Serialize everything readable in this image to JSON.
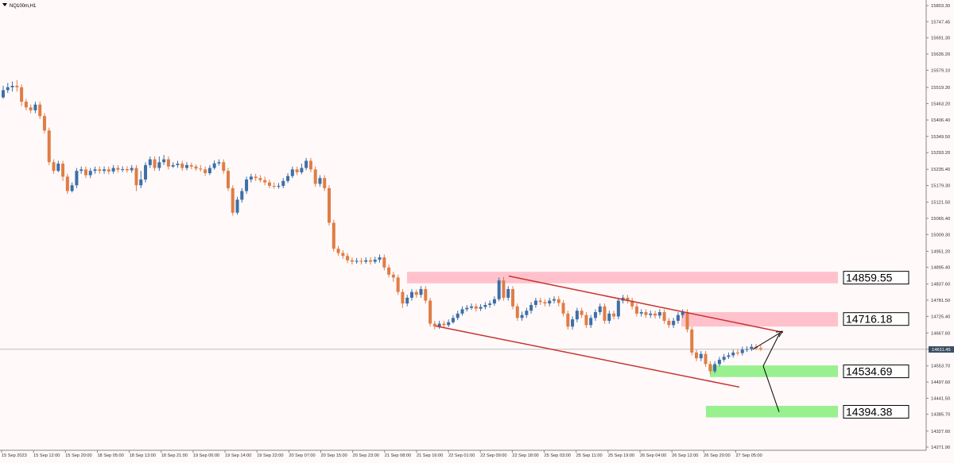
{
  "symbol": "NQ100m,H1",
  "current_price_label": "14611.45",
  "colors": {
    "background": "#fff9f9",
    "bull": "#3d6fa8",
    "bear": "#e07d45",
    "channel": "#c83232",
    "resistance_zone": "#ffc2cc",
    "support_zone": "#98f08e",
    "current_price_line": "#c0c0c0",
    "projection": "#000000"
  },
  "chart_data": {
    "type": "candlestick",
    "title": "NQ100m,H1",
    "ylim": [
      14271.9,
      15803.3
    ],
    "y_ticks": [
      "15803.30",
      "15747.45",
      "15691.30",
      "15635.20",
      "15579.10",
      "15519.30",
      "15463.20",
      "15406.40",
      "15349.50",
      "15293.20",
      "15235.40",
      "15179.30",
      "15121.50",
      "15065.40",
      "15009.30",
      "14951.20",
      "14895.40",
      "14837.60",
      "14781.50",
      "14725.40",
      "14667.60",
      "14611.45",
      "14553.70",
      "14497.60",
      "14441.50",
      "14385.70",
      "14327.60",
      "14271.90"
    ],
    "x_labels": [
      "15 Sep 2023",
      "15 Sep 12:00",
      "15 Sep 20:00",
      "18 Sep 05:00",
      "18 Sep 13:00",
      "18 Sep 21:00",
      "19 Sep 06:00",
      "19 Sep 14:00",
      "19 Sep 22:00",
      "20 Sep 07:00",
      "20 Sep 15:00",
      "20 Sep 23:00",
      "21 Sep 08:00",
      "21 Sep 16:00",
      "22 Sep 01:00",
      "22 Sep 09:00",
      "22 Sep 18:00",
      "25 Sep 03:00",
      "25 Sep 11:00",
      "25 Sep 19:00",
      "26 Sep 04:00",
      "26 Sep 12:00",
      "26 Sep 20:00",
      "27 Sep 05:00"
    ],
    "levels": [
      {
        "label": "14859.55",
        "type": "resistance",
        "value": 14859.55,
        "zone": [
          14840,
          14880
        ]
      },
      {
        "label": "14716.18",
        "type": "resistance",
        "value": 14716.18,
        "zone": [
          14690,
          14740
        ]
      },
      {
        "label": "14534.69",
        "type": "support",
        "value": 14534.69,
        "zone": [
          14515,
          14555
        ]
      },
      {
        "label": "14394.38",
        "type": "support",
        "value": 14394.38,
        "zone": [
          14375,
          14415
        ]
      }
    ],
    "channel": {
      "upper": [
        [
          "22 Sep 09:00",
          14865
        ],
        [
          "27 Sep 13:00",
          14670
        ]
      ],
      "lower": [
        [
          "21 Sep 16:00",
          14692
        ],
        [
          "27 Sep 10:00",
          14480
        ]
      ]
    },
    "projection": [
      14611,
      14668,
      14553,
      14394
    ],
    "candles": [
      [
        15485,
        15510,
        15525,
        15480
      ],
      [
        15510,
        15520,
        15535,
        15500
      ],
      [
        15520,
        15525,
        15540,
        15505
      ],
      [
        15525,
        15520,
        15545,
        15505
      ],
      [
        15520,
        15470,
        15530,
        15455
      ],
      [
        15470,
        15450,
        15480,
        15440
      ],
      [
        15450,
        15440,
        15460,
        15430
      ],
      [
        15440,
        15460,
        15470,
        15430
      ],
      [
        15460,
        15420,
        15470,
        15410
      ],
      [
        15420,
        15370,
        15430,
        15360
      ],
      [
        15370,
        15260,
        15380,
        15250
      ],
      [
        15260,
        15230,
        15270,
        15220
      ],
      [
        15230,
        15255,
        15265,
        15225
      ],
      [
        15255,
        15210,
        15265,
        15195
      ],
      [
        15210,
        15160,
        15220,
        15150
      ],
      [
        15160,
        15180,
        15190,
        15155
      ],
      [
        15180,
        15230,
        15240,
        15170
      ],
      [
        15230,
        15235,
        15245,
        15220
      ],
      [
        15235,
        15215,
        15245,
        15205
      ],
      [
        15215,
        15230,
        15240,
        15205
      ],
      [
        15230,
        15235,
        15245,
        15220
      ],
      [
        15235,
        15230,
        15245,
        15220
      ],
      [
        15230,
        15235,
        15245,
        15220
      ],
      [
        15235,
        15228,
        15245,
        15218
      ],
      [
        15228,
        15240,
        15250,
        15220
      ],
      [
        15240,
        15234,
        15250,
        15224
      ],
      [
        15234,
        15236,
        15246,
        15226
      ],
      [
        15236,
        15232,
        15246,
        15224
      ],
      [
        15232,
        15240,
        15250,
        15224
      ],
      [
        15240,
        15180,
        15250,
        15160
      ],
      [
        15180,
        15200,
        15230,
        15170
      ],
      [
        15200,
        15250,
        15260,
        15190
      ],
      [
        15250,
        15270,
        15280,
        15240
      ],
      [
        15270,
        15240,
        15280,
        15230
      ],
      [
        15240,
        15260,
        15280,
        15230
      ],
      [
        15260,
        15270,
        15285,
        15250
      ],
      [
        15270,
        15245,
        15280,
        15235
      ],
      [
        15245,
        15250,
        15260,
        15240
      ],
      [
        15250,
        15255,
        15265,
        15240
      ],
      [
        15255,
        15240,
        15265,
        15230
      ],
      [
        15240,
        15250,
        15260,
        15232
      ],
      [
        15250,
        15245,
        15258,
        15236
      ],
      [
        15245,
        15238,
        15252,
        15230
      ],
      [
        15238,
        15235,
        15250,
        15228
      ],
      [
        15235,
        15222,
        15245,
        15212
      ],
      [
        15222,
        15240,
        15250,
        15215
      ],
      [
        15240,
        15256,
        15266,
        15234
      ],
      [
        15256,
        15260,
        15270,
        15248
      ],
      [
        15260,
        15230,
        15270,
        15220
      ],
      [
        15230,
        15170,
        15240,
        15160
      ],
      [
        15170,
        15085,
        15180,
        15075
      ],
      [
        15085,
        15130,
        15140,
        15078
      ],
      [
        15130,
        15160,
        15170,
        15120
      ],
      [
        15160,
        15200,
        15210,
        15150
      ],
      [
        15200,
        15210,
        15220,
        15190
      ],
      [
        15210,
        15205,
        15220,
        15195
      ],
      [
        15205,
        15198,
        15215,
        15190
      ],
      [
        15198,
        15190,
        15210,
        15180
      ],
      [
        15190,
        15178,
        15200,
        15170
      ],
      [
        15178,
        15175,
        15190,
        15168
      ],
      [
        15175,
        15178,
        15188,
        15168
      ],
      [
        15178,
        15195,
        15205,
        15170
      ],
      [
        15195,
        15212,
        15222,
        15188
      ],
      [
        15212,
        15235,
        15245,
        15205
      ],
      [
        15235,
        15225,
        15245,
        15215
      ],
      [
        15225,
        15240,
        15255,
        15218
      ],
      [
        15240,
        15265,
        15275,
        15232
      ],
      [
        15265,
        15235,
        15275,
        15225
      ],
      [
        15235,
        15185,
        15245,
        15175
      ],
      [
        15185,
        15205,
        15215,
        15175
      ],
      [
        15205,
        15170,
        15215,
        15160
      ],
      [
        15170,
        15050,
        15180,
        15040
      ],
      [
        15050,
        14960,
        15060,
        14950
      ],
      [
        14960,
        14945,
        14970,
        14935
      ],
      [
        14945,
        14935,
        14955,
        14925
      ],
      [
        14935,
        14920,
        14945,
        14910
      ],
      [
        14920,
        14915,
        14930,
        14905
      ],
      [
        14915,
        14918,
        14928,
        14908
      ],
      [
        14918,
        14915,
        14928,
        14905
      ],
      [
        14915,
        14920,
        14930,
        14908
      ],
      [
        14920,
        14915,
        14930,
        14905
      ],
      [
        14915,
        14922,
        14932,
        14908
      ],
      [
        14922,
        14930,
        14940,
        14912
      ],
      [
        14930,
        14895,
        14940,
        14885
      ],
      [
        14895,
        14870,
        14905,
        14860
      ],
      [
        14870,
        14860,
        14880,
        14845
      ],
      [
        14860,
        14810,
        14870,
        14800
      ],
      [
        14810,
        14770,
        14820,
        14755
      ],
      [
        14770,
        14790,
        14800,
        14760
      ],
      [
        14790,
        14810,
        14820,
        14780
      ],
      [
        14810,
        14800,
        14818,
        14790
      ],
      [
        14800,
        14820,
        14830,
        14790
      ],
      [
        14820,
        14780,
        14830,
        14770
      ],
      [
        14780,
        14700,
        14790,
        14690
      ],
      [
        14700,
        14690,
        14710,
        14680
      ],
      [
        14690,
        14700,
        14710,
        14682
      ],
      [
        14700,
        14695,
        14710,
        14686
      ],
      [
        14695,
        14705,
        14715,
        14688
      ],
      [
        14705,
        14720,
        14730,
        14700
      ],
      [
        14720,
        14735,
        14745,
        14712
      ],
      [
        14735,
        14750,
        14760,
        14728
      ],
      [
        14750,
        14755,
        14765,
        14742
      ],
      [
        14755,
        14760,
        14770,
        14748
      ],
      [
        14760,
        14752,
        14770,
        14742
      ],
      [
        14752,
        14758,
        14768,
        14744
      ],
      [
        14758,
        14765,
        14775,
        14750
      ],
      [
        14765,
        14770,
        14780,
        14755
      ],
      [
        14770,
        14785,
        14795,
        14762
      ],
      [
        14785,
        14850,
        14860,
        14778
      ],
      [
        14850,
        14790,
        14862,
        14780
      ],
      [
        14790,
        14820,
        14830,
        14780
      ],
      [
        14820,
        14760,
        14830,
        14750
      ],
      [
        14760,
        14720,
        14770,
        14710
      ],
      [
        14720,
        14730,
        14742,
        14710
      ],
      [
        14730,
        14745,
        14755,
        14720
      ],
      [
        14745,
        14765,
        14775,
        14735
      ],
      [
        14765,
        14780,
        14790,
        14755
      ],
      [
        14780,
        14775,
        14790,
        14765
      ],
      [
        14775,
        14770,
        14785,
        14760
      ],
      [
        14770,
        14780,
        14790,
        14760
      ],
      [
        14780,
        14785,
        14795,
        14770
      ],
      [
        14785,
        14772,
        14795,
        14760
      ],
      [
        14772,
        14735,
        14782,
        14725
      ],
      [
        14735,
        14690,
        14745,
        14680
      ],
      [
        14690,
        14715,
        14725,
        14680
      ],
      [
        14715,
        14745,
        14755,
        14705
      ],
      [
        14745,
        14730,
        14755,
        14720
      ],
      [
        14730,
        14695,
        14740,
        14685
      ],
      [
        14695,
        14720,
        14730,
        14685
      ],
      [
        14720,
        14740,
        14750,
        14710
      ],
      [
        14740,
        14760,
        14770,
        14730
      ],
      [
        14760,
        14710,
        14770,
        14700
      ],
      [
        14710,
        14735,
        14745,
        14700
      ],
      [
        14735,
        14725,
        14745,
        14715
      ],
      [
        14725,
        14780,
        14790,
        14715
      ],
      [
        14780,
        14790,
        14800,
        14770
      ],
      [
        14790,
        14780,
        14800,
        14770
      ],
      [
        14780,
        14760,
        14790,
        14750
      ],
      [
        14760,
        14735,
        14770,
        14725
      ],
      [
        14735,
        14740,
        14750,
        14725
      ],
      [
        14740,
        14730,
        14750,
        14720
      ],
      [
        14730,
        14735,
        14745,
        14720
      ],
      [
        14735,
        14728,
        14745,
        14718
      ],
      [
        14728,
        14740,
        14750,
        14718
      ],
      [
        14740,
        14710,
        14750,
        14700
      ],
      [
        14710,
        14695,
        14720,
        14685
      ],
      [
        14695,
        14710,
        14720,
        14685
      ],
      [
        14710,
        14730,
        14740,
        14700
      ],
      [
        14730,
        14740,
        14750,
        14720
      ],
      [
        14740,
        14680,
        14750,
        14670
      ],
      [
        14680,
        14600,
        14690,
        14590
      ],
      [
        14600,
        14580,
        14610,
        14570
      ],
      [
        14580,
        14595,
        14605,
        14570
      ],
      [
        14595,
        14560,
        14605,
        14550
      ],
      [
        14560,
        14535,
        14570,
        14525
      ],
      [
        14535,
        14560,
        14570,
        14528
      ],
      [
        14560,
        14575,
        14585,
        14552
      ],
      [
        14575,
        14585,
        14595,
        14568
      ],
      [
        14585,
        14590,
        14600,
        14578
      ],
      [
        14590,
        14600,
        14610,
        14582
      ],
      [
        14600,
        14598,
        14610,
        14590
      ],
      [
        14598,
        14610,
        14620,
        14590
      ],
      [
        14610,
        14612,
        14622,
        14602
      ],
      [
        14612,
        14620,
        14630,
        14605
      ],
      [
        14620,
        14615,
        14630,
        14608
      ],
      [
        14615,
        14611,
        14625,
        14605
      ]
    ]
  }
}
